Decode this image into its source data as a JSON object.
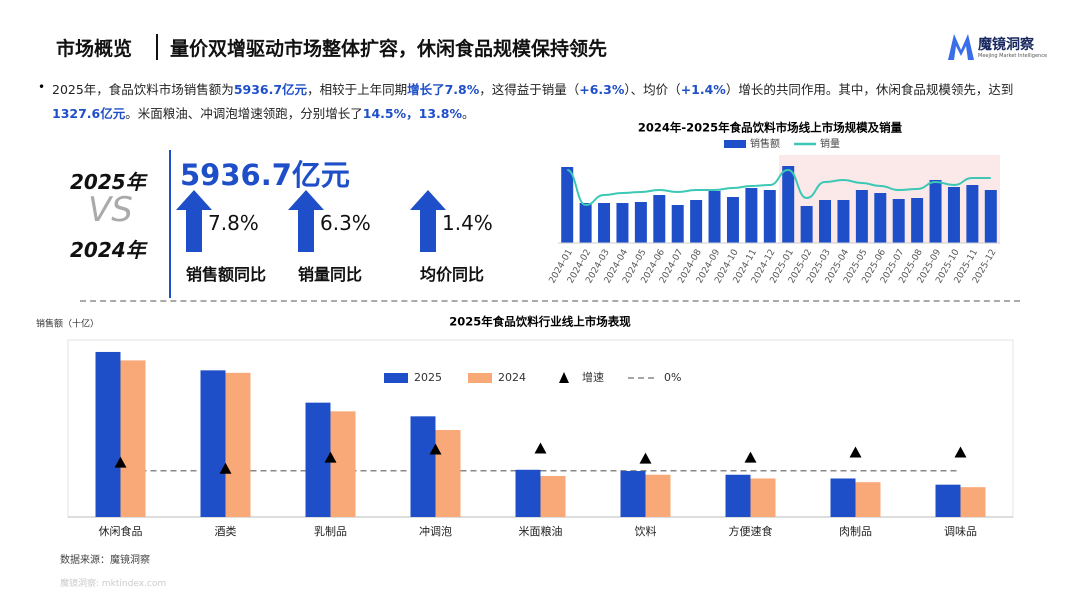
{
  "header": {
    "title": "市场概览",
    "subtitle": "量价双增驱动市场整体扩容，休闲食品规模保持领先",
    "logo": "魔镜洞察",
    "logo_sub": "Meejing Market Intelligence"
  },
  "summary": [
    {
      "text": "2025年，食品饮料市场销售额为"
    },
    {
      "text": "5936.7亿元",
      "highlight": true
    },
    {
      "text": "，相较于上年同期"
    },
    {
      "text": "增长了7.8%",
      "highlight": true
    },
    {
      "text": "，这得益于销量（"
    },
    {
      "text": "+6.3%",
      "highlight": true
    },
    {
      "text": "）、均价（"
    },
    {
      "text": "+1.4%",
      "highlight": true
    },
    {
      "text": "）增长的共同作用。其中，休闲食品规模领先，达到"
    },
    {
      "text": "1327.6亿元",
      "highlight": true
    },
    {
      "text": "。米面粮油、冲调泡增速领跑，分别增长了"
    },
    {
      "text": "14.5%，13.8%",
      "highlight": true
    },
    {
      "text": "。"
    }
  ],
  "comparison": {
    "current": "2025年",
    "vs": "VS",
    "previous": "2024年",
    "headline": "5936.7亿元",
    "kpis": [
      {
        "value": "7.8%",
        "label": "销售额同比"
      },
      {
        "value": "6.3%",
        "label": "销量同比"
      },
      {
        "value": "1.4%",
        "label": "均价同比"
      }
    ]
  },
  "chart_data": [
    {
      "type": "bar-line",
      "title": "2024年-2025年食品饮料市场线上市场规模及销量",
      "categories": [
        "2024-01",
        "2024-02",
        "2024-03",
        "2024-04",
        "2024-05",
        "2024-06",
        "2024-07",
        "2024-08",
        "2024-09",
        "2024-10",
        "2024-11",
        "2024-12",
        "2025-01",
        "2025-02",
        "2025-03",
        "2025-04",
        "2025-05",
        "2025-06",
        "2025-07",
        "2025-08",
        "2025-09",
        "2025-10",
        "2025-11",
        "2025-12"
      ],
      "series": [
        {
          "name": "销售额",
          "type": "bar",
          "color": "#1f4fc8",
          "values": [
            76,
            40,
            40,
            40,
            41,
            48,
            38,
            43,
            52,
            46,
            55,
            53,
            77,
            37,
            43,
            43,
            53,
            50,
            44,
            45,
            63,
            56,
            58,
            53
          ]
        },
        {
          "name": "销量",
          "type": "line",
          "color": "#3cc8b4",
          "values": [
            73,
            38,
            48,
            50,
            51,
            53,
            51,
            53,
            53,
            55,
            57,
            58,
            73,
            45,
            61,
            63,
            60,
            57,
            53,
            54,
            61,
            58,
            65,
            65
          ]
        }
      ],
      "ylim": [
        0,
        100
      ],
      "highlight_range": [
        "2025-01",
        "2025-12"
      ],
      "highlight_color": "#fbe9ea"
    },
    {
      "type": "bar-scatter",
      "title": "2025年食品饮料行业线上市场表现",
      "y_label": "销售额（十亿）",
      "categories": [
        "休闲食品",
        "酒类",
        "乳制品",
        "冲调泡",
        "米面粮油",
        "饮料",
        "方便速食",
        "肉制品",
        "调味品"
      ],
      "series": [
        {
          "name": "2025",
          "type": "bar",
          "color": "#1f4fc8",
          "values": [
            132.8,
            118,
            92,
            81,
            38,
            37,
            34,
            31,
            26
          ]
        },
        {
          "name": "2024",
          "type": "bar",
          "color": "#f9a878",
          "values": [
            126,
            116,
            85,
            70,
            33,
            34,
            31,
            28,
            24
          ]
        },
        {
          "name": "增速",
          "type": "scatter",
          "axis": "y2",
          "color": "#000000",
          "values": [
            5.3,
            1.3,
            8.6,
            13.8,
            14.5,
            7.9,
            8.6,
            11.9,
            11.9
          ]
        }
      ],
      "reference_lines": [
        {
          "name": "0%",
          "value": 0,
          "axis": "y2",
          "color": "#888888"
        }
      ],
      "ylim": [
        0,
        140
      ],
      "y2lim": [
        -30,
        83
      ]
    }
  ],
  "footer": {
    "source": "数据来源：魔镜洞察",
    "watermark": "魔镜洞察: mktindex.com"
  }
}
